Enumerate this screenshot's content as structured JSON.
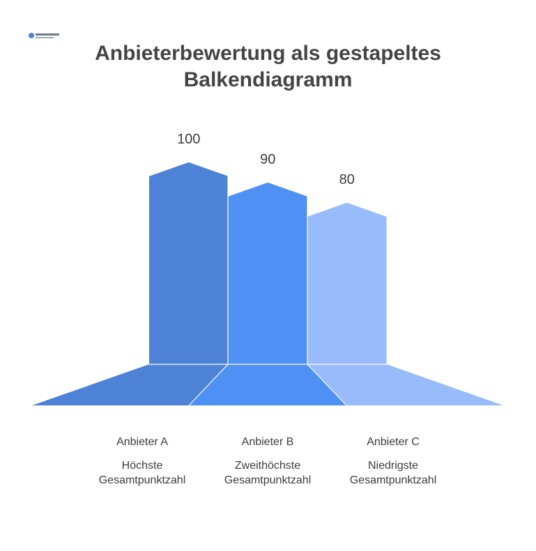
{
  "title_line1": "Anbieterbewertung als gestapeltes",
  "title_line2": "Balkendiagramm",
  "colors": {
    "a": "#4e82d6",
    "b": "#4e90f4",
    "c": "#98bcfb"
  },
  "chart_data": {
    "type": "bar",
    "title": "Anbieterbewertung als gestapeltes Balkendiagramm",
    "categories": [
      "Anbieter A",
      "Anbieter B",
      "Anbieter C"
    ],
    "values": [
      100,
      90,
      80
    ],
    "value_labels": [
      "100",
      "90",
      "80"
    ],
    "descriptions": [
      "Höchste Gesamtpunktzahl",
      "Zweithöchste Gesamtpunktzahl",
      "Niedrigste Gesamtpunktzahl"
    ],
    "xlabel": "",
    "ylabel": ""
  }
}
